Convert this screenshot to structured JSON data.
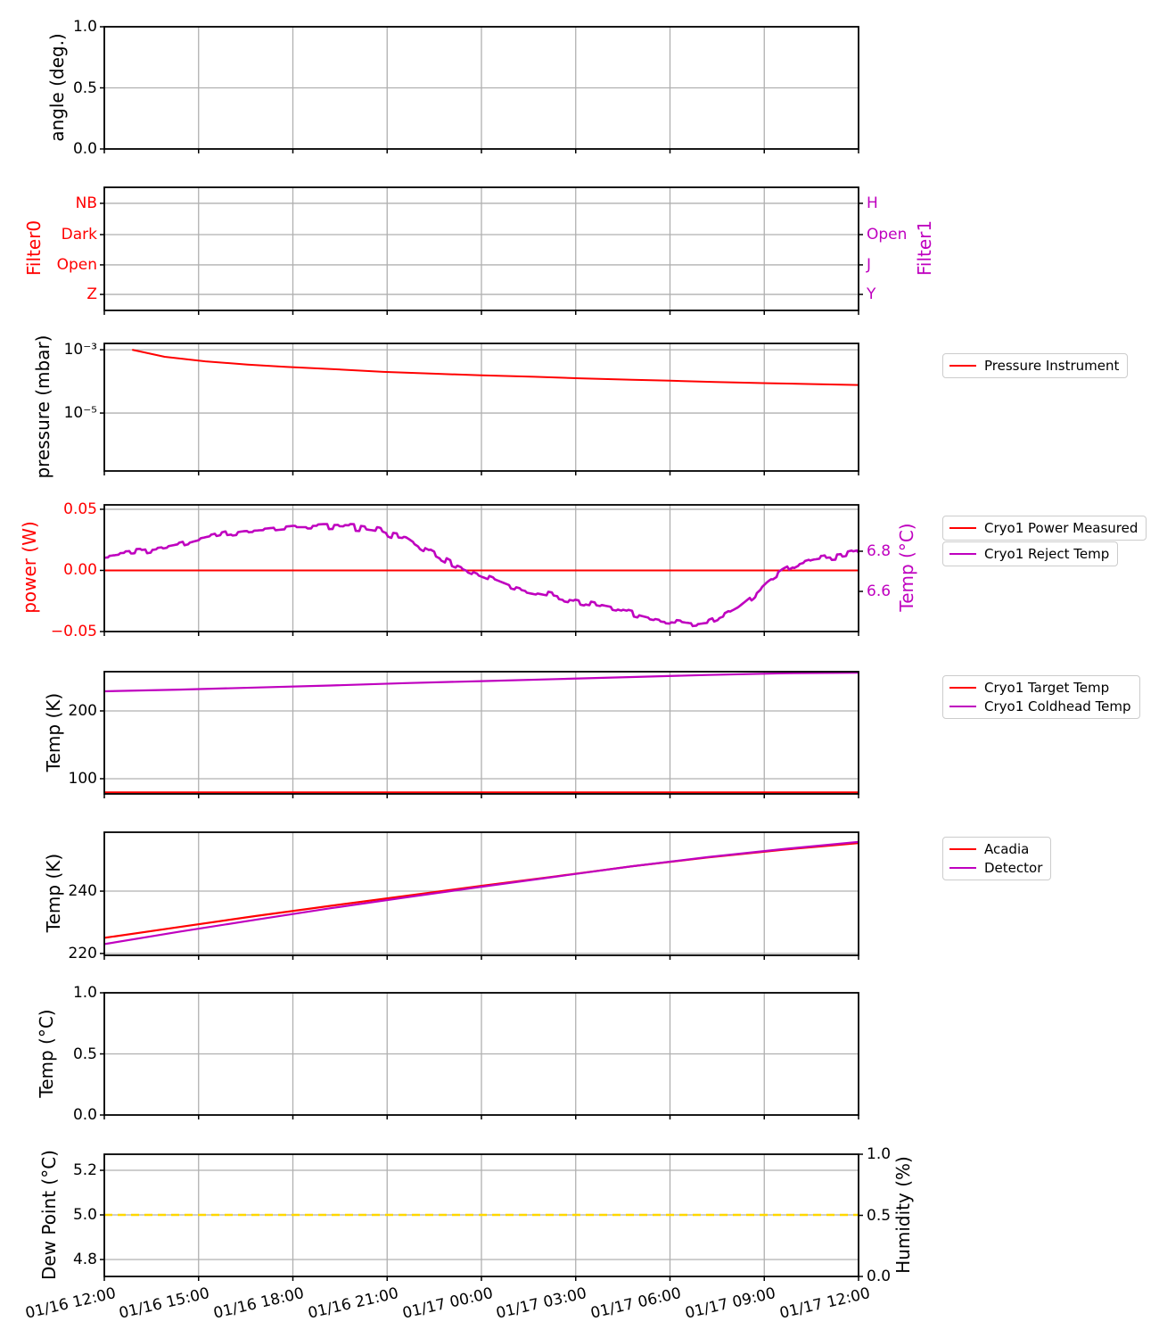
{
  "figure": {
    "background": "#ffffff"
  },
  "colors": {
    "red": "#ff0000",
    "magenta": "#bf00bf",
    "gold": "#ffd700",
    "grid": "#b0b0b0",
    "text": "#000000",
    "legend_border": "#cccccc"
  },
  "x_axis": {
    "tick_labels": [
      "01/16 12:00",
      "01/16 15:00",
      "01/16 18:00",
      "01/16 21:00",
      "01/17 00:00",
      "01/17 03:00",
      "01/17 06:00",
      "01/17 09:00",
      "01/17 12:00"
    ]
  },
  "chart_data": [
    {
      "id": "angle",
      "type": "line",
      "ylabel": "angle (deg.)",
      "ylabel_color": "#000000",
      "yticks": [
        {
          "v": 1,
          "label": "1.0"
        },
        {
          "v": 0.5,
          "label": "0.5"
        },
        {
          "v": 0,
          "label": "0.0"
        }
      ],
      "ylim": [
        0,
        1
      ],
      "series": []
    },
    {
      "id": "filters",
      "type": "line",
      "ylabel_left": "Filter0",
      "ylabel_left_color": "#ff0000",
      "ylabel_right": "Filter1",
      "ylabel_right_color": "#bf00bf",
      "yticks_left": [
        {
          "pos": 0.13,
          "label": "NB"
        },
        {
          "pos": 0.384,
          "label": "Dark"
        },
        {
          "pos": 0.63,
          "label": "Open"
        },
        {
          "pos": 0.87,
          "label": "Z"
        }
      ],
      "yticks_left_color": "#ff0000",
      "yticks_right": [
        {
          "pos": 0.13,
          "label": "H"
        },
        {
          "pos": 0.384,
          "label": "Open"
        },
        {
          "pos": 0.63,
          "label": "J"
        },
        {
          "pos": 0.87,
          "label": "Y"
        }
      ],
      "yticks_right_color": "#bf00bf",
      "series": []
    },
    {
      "id": "pressure",
      "type": "line",
      "ylabel": "pressure (mbar)",
      "ylabel_color": "#000000",
      "yscale": "log",
      "yticks": [
        {
          "v": 0.001,
          "label": "10⁻³"
        },
        {
          "v": 1e-05,
          "label": "10⁻⁵"
        }
      ],
      "legend": [
        {
          "label": "Pressure Instrument",
          "color": "#ff0000"
        }
      ],
      "series": [
        {
          "name": "Pressure Instrument",
          "color": "#ff0000",
          "width": 2,
          "points": [
            [
              0.037,
              0.001
            ],
            [
              0.08,
              0.0006
            ],
            [
              0.134,
              0.00043
            ],
            [
              0.19,
              0.00034
            ],
            [
              0.24,
              0.00029
            ],
            [
              0.31,
              0.00024
            ],
            [
              0.37,
              0.0002
            ],
            [
              0.44,
              0.000175
            ],
            [
              0.5,
              0.000155
            ],
            [
              0.57,
              0.00014
            ],
            [
              0.63,
              0.000125
            ],
            [
              0.7,
              0.000113
            ],
            [
              0.75,
              0.000105
            ],
            [
              0.81,
              9.6e-05
            ],
            [
              0.88,
              8.8e-05
            ],
            [
              0.94,
              8.2e-05
            ],
            [
              1,
              7.7e-05
            ]
          ]
        }
      ]
    },
    {
      "id": "power",
      "type": "line",
      "ylabel_left": "power (W)",
      "ylabel_left_color": "#ff0000",
      "ylabel_right": "Temp (°C)",
      "ylabel_right_color": "#bf00bf",
      "yticks_left": [
        {
          "v": 0.05,
          "label": "0.05"
        },
        {
          "v": 0,
          "label": "0.00"
        },
        {
          "v": -0.05,
          "label": "−0.05"
        }
      ],
      "yticks_left_color": "#ff0000",
      "yticks_right": [
        {
          "v": 6.8,
          "label": "6.8"
        },
        {
          "v": 6.6,
          "label": "6.6"
        }
      ],
      "yticks_right_color": "#bf00bf",
      "legend": [
        {
          "label": "Cryo1 Power Measured",
          "color": "#ff0000"
        },
        {
          "label": "Cryo1 Reject Temp",
          "color": "#bf00bf"
        }
      ],
      "series": [
        {
          "name": "Cryo1 Power Measured",
          "axis": "left",
          "color": "#ff0000",
          "width": 2,
          "points": [
            [
              0,
              0
            ],
            [
              1,
              0
            ]
          ]
        },
        {
          "name": "Cryo1 Reject Temp",
          "axis": "right",
          "color": "#bf00bf",
          "width": 2.6,
          "noise": 0.013,
          "points": [
            [
              0,
              6.78
            ],
            [
              0.02,
              6.79
            ],
            [
              0.05,
              6.8
            ],
            [
              0.08,
              6.815
            ],
            [
              0.1,
              6.83
            ],
            [
              0.13,
              6.86
            ],
            [
              0.16,
              6.885
            ],
            [
              0.185,
              6.9
            ],
            [
              0.21,
              6.905
            ],
            [
              0.25,
              6.92
            ],
            [
              0.28,
              6.92
            ],
            [
              0.31,
              6.925
            ],
            [
              0.34,
              6.92
            ],
            [
              0.365,
              6.905
            ],
            [
              0.38,
              6.88
            ],
            [
              0.4,
              6.87
            ],
            [
              0.42,
              6.82
            ],
            [
              0.44,
              6.78
            ],
            [
              0.46,
              6.74
            ],
            [
              0.48,
              6.71
            ],
            [
              0.5,
              6.68
            ],
            [
              0.52,
              6.65
            ],
            [
              0.54,
              6.62
            ],
            [
              0.56,
              6.6
            ],
            [
              0.58,
              6.585
            ],
            [
              0.6,
              6.57
            ],
            [
              0.62,
              6.555
            ],
            [
              0.64,
              6.54
            ],
            [
              0.66,
              6.525
            ],
            [
              0.68,
              6.51
            ],
            [
              0.7,
              6.49
            ],
            [
              0.72,
              6.47
            ],
            [
              0.74,
              6.455
            ],
            [
              0.76,
              6.45
            ],
            [
              0.78,
              6.44
            ],
            [
              0.8,
              6.45
            ],
            [
              0.82,
              6.48
            ],
            [
              0.84,
              6.52
            ],
            [
              0.86,
              6.58
            ],
            [
              0.88,
              6.65
            ],
            [
              0.9,
              6.7
            ],
            [
              0.92,
              6.74
            ],
            [
              0.94,
              6.765
            ],
            [
              0.96,
              6.775
            ],
            [
              0.98,
              6.78
            ],
            [
              1,
              6.8
            ]
          ]
        }
      ]
    },
    {
      "id": "cryo",
      "type": "line",
      "ylabel": "Temp (K)",
      "ylabel_color": "#000000",
      "yticks": [
        {
          "v": 200,
          "label": "200"
        },
        {
          "v": 100,
          "label": "100"
        }
      ],
      "legend": [
        {
          "label": "Cryo1 Target Temp",
          "color": "#ff0000"
        },
        {
          "label": "Cryo1 Coldhead Temp",
          "color": "#bf00bf"
        }
      ],
      "series": [
        {
          "name": "Cryo1 Target Temp",
          "color": "#ff0000",
          "width": 2,
          "points": [
            [
              0,
              80
            ],
            [
              1,
              80
            ]
          ]
        },
        {
          "name": "Cryo1 Coldhead Temp",
          "color": "#bf00bf",
          "width": 2.2,
          "points": [
            [
              0,
              229
            ],
            [
              0.1,
              231.5
            ],
            [
              0.2,
              234.5
            ],
            [
              0.3,
              237.5
            ],
            [
              0.4,
              241
            ],
            [
              0.5,
              244
            ],
            [
              0.6,
              247
            ],
            [
              0.7,
              250
            ],
            [
              0.8,
              253
            ],
            [
              0.9,
              255.5
            ],
            [
              1,
              256.5
            ]
          ]
        }
      ]
    },
    {
      "id": "detector",
      "type": "line",
      "ylabel": "Temp (K)",
      "ylabel_color": "#000000",
      "yticks": [
        {
          "v": 240,
          "label": "240"
        },
        {
          "v": 220,
          "label": "220"
        }
      ],
      "legend": [
        {
          "label": "Acadia",
          "color": "#ff0000"
        },
        {
          "label": "Detector",
          "color": "#bf00bf"
        }
      ],
      "series": [
        {
          "name": "Acadia",
          "color": "#ff0000",
          "width": 2.2,
          "points": [
            [
              0,
              225
            ],
            [
              0.1,
              228.5
            ],
            [
              0.2,
              232
            ],
            [
              0.3,
              235.3
            ],
            [
              0.4,
              238.5
            ],
            [
              0.5,
              241.7
            ],
            [
              0.6,
              244.8
            ],
            [
              0.7,
              248
            ],
            [
              0.8,
              250.8
            ],
            [
              0.9,
              253.3
            ],
            [
              1,
              255.4
            ]
          ]
        },
        {
          "name": "Detector",
          "color": "#bf00bf",
          "width": 2.2,
          "points": [
            [
              0,
              223
            ],
            [
              0.1,
              227
            ],
            [
              0.2,
              230.8
            ],
            [
              0.3,
              234.5
            ],
            [
              0.4,
              238
            ],
            [
              0.5,
              241.4
            ],
            [
              0.6,
              244.7
            ],
            [
              0.7,
              248
            ],
            [
              0.8,
              250.9
            ],
            [
              0.9,
              253.5
            ],
            [
              1,
              255.8
            ]
          ]
        }
      ]
    },
    {
      "id": "tempc",
      "type": "line",
      "ylabel": "Temp (°C)",
      "ylabel_color": "#000000",
      "yticks": [
        {
          "v": 1,
          "label": "1.0"
        },
        {
          "v": 0.5,
          "label": "0.5"
        },
        {
          "v": 0,
          "label": "0.0"
        }
      ],
      "ylim": [
        0,
        1
      ],
      "series": []
    },
    {
      "id": "dew",
      "type": "line",
      "ylabel_left": "Dew Point (°C)",
      "ylabel_left_color": "#000000",
      "ylabel_right": "Humidity (%)",
      "ylabel_right_color": "#000000",
      "yticks_left": [
        {
          "v": 5.2,
          "label": "5.2"
        },
        {
          "v": 5.0,
          "label": "5.0"
        },
        {
          "v": 4.8,
          "label": "4.8"
        }
      ],
      "yticks_left_color": "#000000",
      "yticks_right": [
        {
          "v": 1,
          "label": "1.0"
        },
        {
          "v": 0.5,
          "label": "0.5"
        },
        {
          "v": 0,
          "label": "0.0"
        }
      ],
      "yticks_right_color": "#000000",
      "series": [
        {
          "name": "Dew Point",
          "axis": "left",
          "color": "#ffd700",
          "width": 2.6,
          "dash": "9 6",
          "points": [
            [
              0,
              5.0
            ],
            [
              1,
              5.0
            ]
          ]
        }
      ]
    }
  ]
}
